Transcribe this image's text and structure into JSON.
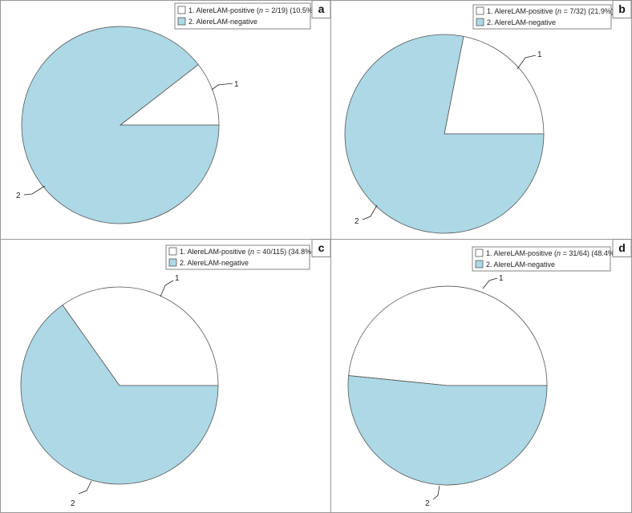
{
  "colors": {
    "positive": "#ffffff",
    "negative": "#add8e6",
    "stroke": "#555555",
    "frame": "#999999"
  },
  "chart_data": [
    {
      "type": "pie",
      "letter": "a",
      "legend": {
        "item1_prefix": "1. AlereLAM-positive (",
        "item1_n": "n",
        "item1_count": " = 2/19) (10.5%)",
        "item2": "2. AlereLAM-negative"
      },
      "slices": [
        {
          "label": "1",
          "name": "AlereLAM-positive",
          "value": 10.5
        },
        {
          "label": "2",
          "name": "AlereLAM-negative",
          "value": 89.5
        }
      ]
    },
    {
      "type": "pie",
      "letter": "b",
      "legend": {
        "item1_prefix": "1. AlereLAM-positive (",
        "item1_n": "n",
        "item1_count": " = 7/32) (21.9%)",
        "item2": "2. AlereLAM-negative"
      },
      "slices": [
        {
          "label": "1",
          "name": "AlereLAM-positive",
          "value": 21.9
        },
        {
          "label": "2",
          "name": "AlereLAM-negative",
          "value": 78.1
        }
      ]
    },
    {
      "type": "pie",
      "letter": "c",
      "legend": {
        "item1_prefix": "1. AlereLAM-positive (",
        "item1_n": "n",
        "item1_count": " = 40/115) (34.8%)",
        "item2": "2. AlereLAM-negative"
      },
      "slices": [
        {
          "label": "1",
          "name": "AlereLAM-positive",
          "value": 34.8
        },
        {
          "label": "2",
          "name": "AlereLAM-negative",
          "value": 65.2
        }
      ]
    },
    {
      "type": "pie",
      "letter": "d",
      "legend": {
        "item1_prefix": "1. AlereLAM-positive (",
        "item1_n": "n",
        "item1_count": " = 31/64) (48.4%)",
        "item2": "2. AlereLAM-negative"
      },
      "slices": [
        {
          "label": "1",
          "name": "AlereLAM-positive",
          "value": 48.4
        },
        {
          "label": "2",
          "name": "AlereLAM-negative",
          "value": 51.6
        }
      ]
    }
  ]
}
